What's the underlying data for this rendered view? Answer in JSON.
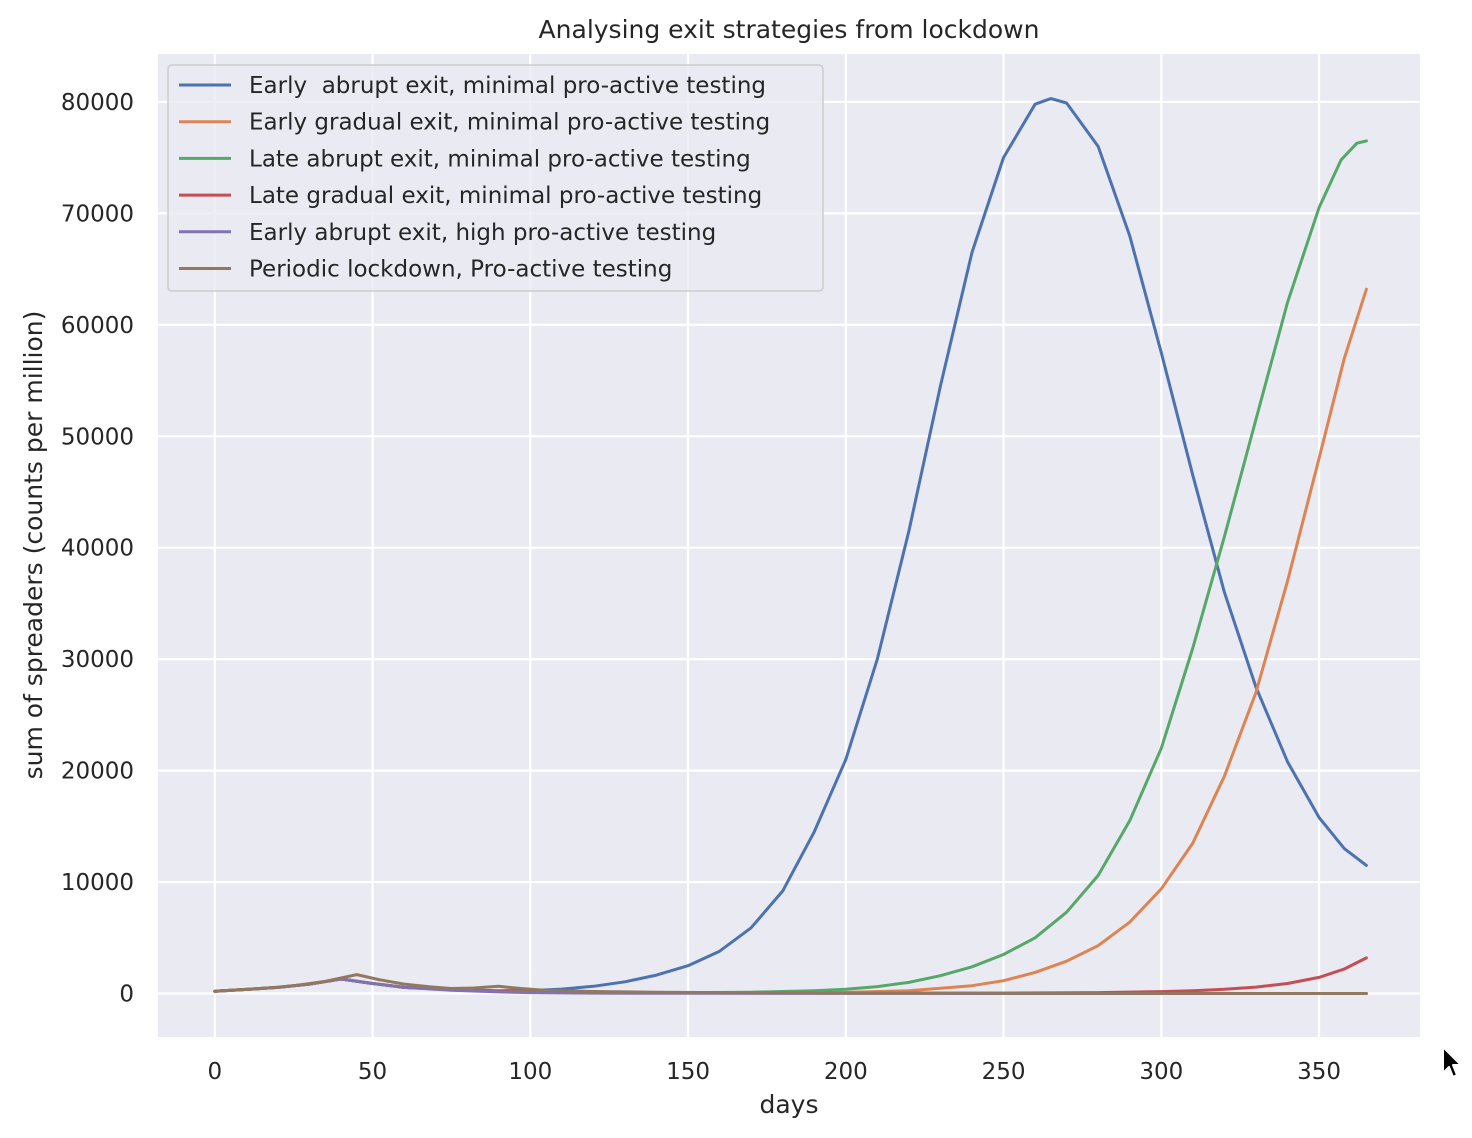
{
  "chart_data": {
    "type": "line",
    "title": "Analysing exit strategies from lockdown",
    "xlabel": "days",
    "ylabel": "sum of spreaders (counts per million)",
    "xlim": [
      -18,
      382
    ],
    "ylim": [
      -3900,
      84300
    ],
    "xticks": [
      0,
      50,
      100,
      150,
      200,
      250,
      300,
      350
    ],
    "yticks": [
      0,
      10000,
      20000,
      30000,
      40000,
      50000,
      60000,
      70000,
      80000
    ],
    "grid": true,
    "background": "#eaeaf2",
    "legend_position": "upper-left",
    "series": [
      {
        "name": "Early  abrupt exit, minimal pro-active testing",
        "color": "#4c72b0",
        "points": [
          [
            0,
            200
          ],
          [
            20,
            550
          ],
          [
            30,
            850
          ],
          [
            40,
            1300
          ],
          [
            50,
            900
          ],
          [
            60,
            550
          ],
          [
            75,
            350
          ],
          [
            90,
            250
          ],
          [
            100,
            260
          ],
          [
            110,
            400
          ],
          [
            120,
            650
          ],
          [
            130,
            1050
          ],
          [
            140,
            1650
          ],
          [
            150,
            2500
          ],
          [
            160,
            3800
          ],
          [
            170,
            5900
          ],
          [
            180,
            9200
          ],
          [
            190,
            14500
          ],
          [
            200,
            21000
          ],
          [
            210,
            30000
          ],
          [
            220,
            41500
          ],
          [
            230,
            54500
          ],
          [
            240,
            66500
          ],
          [
            250,
            75000
          ],
          [
            260,
            79800
          ],
          [
            265,
            80300
          ],
          [
            270,
            79900
          ],
          [
            280,
            76000
          ],
          [
            290,
            68000
          ],
          [
            300,
            57500
          ],
          [
            310,
            46500
          ],
          [
            320,
            36000
          ],
          [
            330,
            27500
          ],
          [
            340,
            20800
          ],
          [
            350,
            15800
          ],
          [
            358,
            13000
          ],
          [
            365,
            11500
          ]
        ]
      },
      {
        "name": "Early gradual exit, minimal pro-active testing",
        "color": "#dd8452",
        "points": [
          [
            0,
            200
          ],
          [
            20,
            550
          ],
          [
            30,
            850
          ],
          [
            40,
            1300
          ],
          [
            50,
            900
          ],
          [
            60,
            550
          ],
          [
            75,
            350
          ],
          [
            90,
            200
          ],
          [
            100,
            120
          ],
          [
            120,
            80
          ],
          [
            150,
            60
          ],
          [
            180,
            70
          ],
          [
            200,
            100
          ],
          [
            220,
            250
          ],
          [
            240,
            700
          ],
          [
            250,
            1150
          ],
          [
            260,
            1900
          ],
          [
            270,
            2900
          ],
          [
            280,
            4300
          ],
          [
            290,
            6400
          ],
          [
            300,
            9400
          ],
          [
            310,
            13500
          ],
          [
            320,
            19500
          ],
          [
            330,
            27000
          ],
          [
            340,
            37000
          ],
          [
            350,
            48000
          ],
          [
            358,
            57000
          ],
          [
            365,
            63200
          ]
        ]
      },
      {
        "name": "Late abrupt exit, minimal pro-active testing",
        "color": "#55a868",
        "points": [
          [
            0,
            200
          ],
          [
            20,
            550
          ],
          [
            30,
            850
          ],
          [
            40,
            1300
          ],
          [
            50,
            900
          ],
          [
            60,
            550
          ],
          [
            75,
            350
          ],
          [
            90,
            200
          ],
          [
            100,
            150
          ],
          [
            120,
            100
          ],
          [
            150,
            80
          ],
          [
            170,
            120
          ],
          [
            190,
            250
          ],
          [
            200,
            380
          ],
          [
            210,
            620
          ],
          [
            220,
            1000
          ],
          [
            230,
            1600
          ],
          [
            240,
            2400
          ],
          [
            250,
            3500
          ],
          [
            260,
            5000
          ],
          [
            270,
            7300
          ],
          [
            280,
            10600
          ],
          [
            290,
            15500
          ],
          [
            300,
            22000
          ],
          [
            310,
            31000
          ],
          [
            320,
            41000
          ],
          [
            330,
            51500
          ],
          [
            340,
            62000
          ],
          [
            350,
            70500
          ],
          [
            357,
            74800
          ],
          [
            362,
            76300
          ],
          [
            365,
            76500
          ]
        ]
      },
      {
        "name": "Late gradual exit, minimal pro-active testing",
        "color": "#c44e52",
        "points": [
          [
            0,
            200
          ],
          [
            20,
            550
          ],
          [
            30,
            850
          ],
          [
            40,
            1300
          ],
          [
            50,
            900
          ],
          [
            60,
            550
          ],
          [
            75,
            350
          ],
          [
            90,
            200
          ],
          [
            100,
            120
          ],
          [
            120,
            70
          ],
          [
            150,
            50
          ],
          [
            200,
            40
          ],
          [
            250,
            40
          ],
          [
            280,
            80
          ],
          [
            300,
            170
          ],
          [
            310,
            250
          ],
          [
            320,
            380
          ],
          [
            330,
            580
          ],
          [
            340,
            900
          ],
          [
            350,
            1450
          ],
          [
            358,
            2200
          ],
          [
            365,
            3200
          ]
        ]
      },
      {
        "name": "Early abrupt exit, high pro-active testing",
        "color": "#8172b3",
        "points": [
          [
            0,
            200
          ],
          [
            20,
            550
          ],
          [
            30,
            850
          ],
          [
            40,
            1300
          ],
          [
            50,
            900
          ],
          [
            60,
            550
          ],
          [
            75,
            300
          ],
          [
            90,
            150
          ],
          [
            100,
            80
          ],
          [
            120,
            40
          ],
          [
            150,
            20
          ],
          [
            200,
            10
          ],
          [
            250,
            5
          ],
          [
            300,
            5
          ],
          [
            365,
            5
          ]
        ]
      },
      {
        "name": "Periodic lockdown, Pro-active testing",
        "color": "#937860",
        "points": [
          [
            0,
            200
          ],
          [
            15,
            450
          ],
          [
            25,
            700
          ],
          [
            35,
            1100
          ],
          [
            45,
            1700
          ],
          [
            52,
            1250
          ],
          [
            60,
            850
          ],
          [
            68,
            600
          ],
          [
            75,
            450
          ],
          [
            82,
            500
          ],
          [
            90,
            650
          ],
          [
            97,
            450
          ],
          [
            105,
            280
          ],
          [
            120,
            180
          ],
          [
            140,
            120
          ],
          [
            160,
            80
          ],
          [
            200,
            40
          ],
          [
            250,
            20
          ],
          [
            300,
            10
          ],
          [
            365,
            5
          ]
        ]
      }
    ]
  }
}
